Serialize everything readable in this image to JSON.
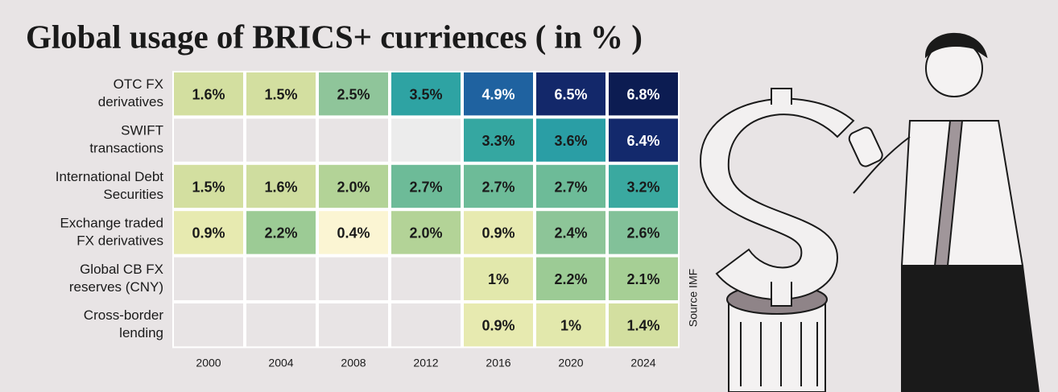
{
  "chart_data": {
    "type": "heatmap",
    "title": "Global usage of BRICS+ curriences ( in % )",
    "source": "Source IMF",
    "categories": [
      "2000",
      "2004",
      "2008",
      "2012",
      "2016",
      "2020",
      "2024"
    ],
    "rows": [
      [
        "OTC FX",
        "derivatives"
      ],
      [
        "SWIFT",
        "transactions"
      ],
      [
        "International Debt",
        "Securities"
      ],
      [
        "Exchange traded",
        "FX derivatives"
      ],
      [
        "Global CB FX",
        "reserves (CNY)"
      ],
      [
        "Cross-border",
        "lending"
      ]
    ],
    "values": [
      [
        1.6,
        1.5,
        2.5,
        3.5,
        4.9,
        6.5,
        6.8
      ],
      [
        null,
        null,
        null,
        null,
        3.3,
        3.6,
        6.4
      ],
      [
        1.5,
        1.6,
        2.0,
        2.7,
        2.7,
        2.7,
        3.2
      ],
      [
        0.9,
        2.2,
        0.4,
        2.0,
        0.9,
        2.4,
        2.6
      ],
      [
        null,
        null,
        null,
        null,
        1,
        2.2,
        2.1
      ],
      [
        null,
        null,
        null,
        null,
        0.9,
        1,
        1.4
      ]
    ],
    "value_labels": [
      [
        "1.6%",
        "1.5%",
        "2.5%",
        "3.5%",
        "4.9%",
        "6.5%",
        "6.8%"
      ],
      [
        null,
        null,
        null,
        null,
        "3.3%",
        "3.6%",
        "6.4%"
      ],
      [
        "1.5%",
        "1.6%",
        "2.0%",
        "2.7%",
        "2.7%",
        "2.7%",
        "3.2%"
      ],
      [
        "0.9%",
        "2.2%",
        "0.4%",
        "2.0%",
        "0.9%",
        "2.4%",
        "2.6%"
      ],
      [
        null,
        null,
        null,
        null,
        "1%",
        "2.2%",
        "2.1%"
      ],
      [
        null,
        null,
        null,
        null,
        "0.9%",
        "1%",
        "1.4%"
      ]
    ],
    "colors": [
      [
        "#d3dfa0",
        "#d3dfa0",
        "#8fc59a",
        "#2ea3a3",
        "#1f62a0",
        "#13286a",
        "#0c1c52"
      ],
      [
        null,
        null,
        null,
        "#ececec",
        "#35a7a1",
        "#2a9ea5",
        "#13296c"
      ],
      [
        "#d3dfa0",
        "#cfdd9f",
        "#b3d397",
        "#6dbb98",
        "#6dbb98",
        "#6dbb98",
        "#3aa9a0"
      ],
      [
        "#e7eab0",
        "#9ccb95",
        "#fbf5d3",
        "#b3d397",
        "#e7eab0",
        "#8dc598",
        "#82c199"
      ],
      [
        null,
        null,
        null,
        null,
        "#e2e8ac",
        "#9ccb95",
        "#a6cf95"
      ],
      [
        null,
        null,
        null,
        null,
        "#e7eab0",
        "#e2e8ac",
        "#d3dfa0"
      ]
    ]
  }
}
